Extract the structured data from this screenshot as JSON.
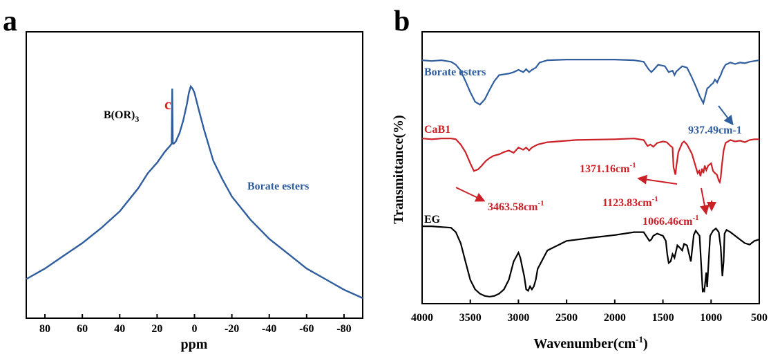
{
  "chart_data": [
    {
      "panel": "a",
      "type": "line",
      "xlabel": "ppm",
      "ylabel": "",
      "xlim": [
        90,
        -90
      ],
      "xticks": [
        "80",
        "60",
        "40",
        "20",
        "0",
        "-20",
        "-40",
        "-60",
        "-80"
      ],
      "series": [
        {
          "name": "Borate esters",
          "color": "#2f5d9e",
          "x": [
            90,
            80,
            70,
            60,
            50,
            40,
            30,
            25,
            20,
            16,
            14,
            13,
            12.2,
            11.9,
            11.6,
            11,
            10,
            8,
            6,
            4,
            3,
            2,
            1,
            0,
            -2,
            -5,
            -10,
            -15,
            -20,
            -30,
            -40,
            -50,
            -60,
            -70,
            -80,
            -90
          ],
          "y": [
            0.09,
            0.14,
            0.2,
            0.26,
            0.33,
            0.41,
            0.52,
            0.59,
            0.64,
            0.69,
            0.71,
            0.72,
            0.73,
            0.99,
            0.73,
            0.73,
            0.74,
            0.78,
            0.84,
            0.92,
            0.97,
            1.0,
            0.99,
            0.97,
            0.9,
            0.8,
            0.65,
            0.56,
            0.48,
            0.37,
            0.28,
            0.21,
            0.14,
            0.09,
            0.04,
            0.0
          ]
        }
      ],
      "annotations": [
        {
          "text": "B(OR)",
          "sub": "3",
          "color": "#000000"
        },
        {
          "text": "c",
          "color": "#e02020"
        },
        {
          "text": "Borate esters",
          "color": "#2f5d9e"
        }
      ]
    },
    {
      "panel": "b",
      "type": "line",
      "xlabel": "Wavenumber(cm",
      "xlabel_sup": "-1",
      "xlabel_end": ")",
      "ylabel": "Transmittance(%)",
      "xlim": [
        4000,
        500
      ],
      "xticks": [
        "4000",
        "3500",
        "3000",
        "2500",
        "2000",
        "1500",
        "1000",
        "500"
      ],
      "series": [
        {
          "name": "Borate esters",
          "color": "#2f5d9e",
          "x": [
            4000,
            3900,
            3800,
            3700,
            3650,
            3600,
            3550,
            3500,
            3450,
            3400,
            3350,
            3300,
            3250,
            3200,
            3100,
            3050,
            3000,
            2950,
            2920,
            2890,
            2860,
            2820,
            2780,
            2700,
            2500,
            2200,
            2000,
            1800,
            1700,
            1650,
            1620,
            1590,
            1550,
            1480,
            1440,
            1400,
            1380,
            1360,
            1300,
            1250,
            1200,
            1150,
            1120,
            1100,
            1080,
            1060,
            1040,
            1020,
            1000,
            980,
            960,
            937,
            920,
            900,
            880,
            850,
            800,
            750,
            700,
            650,
            600,
            550,
            500
          ],
          "y": [
            0.98,
            0.97,
            0.98,
            0.96,
            0.92,
            0.84,
            0.7,
            0.55,
            0.42,
            0.38,
            0.45,
            0.58,
            0.7,
            0.78,
            0.8,
            0.82,
            0.85,
            0.82,
            0.86,
            0.82,
            0.85,
            0.88,
            0.95,
            0.98,
            0.99,
            0.99,
            0.99,
            0.98,
            0.96,
            0.86,
            0.82,
            0.86,
            0.92,
            0.9,
            0.82,
            0.84,
            0.78,
            0.83,
            0.9,
            0.88,
            0.75,
            0.6,
            0.5,
            0.45,
            0.4,
            0.5,
            0.6,
            0.62,
            0.65,
            0.67,
            0.72,
            0.68,
            0.73,
            0.78,
            0.85,
            0.92,
            0.95,
            0.93,
            0.95,
            0.94,
            0.96,
            0.97,
            0.98
          ]
        },
        {
          "name": "CaB1",
          "color": "#cc2027",
          "x": [
            4000,
            3900,
            3800,
            3700,
            3650,
            3600,
            3550,
            3500,
            3463,
            3420,
            3380,
            3340,
            3300,
            3260,
            3200,
            3150,
            3100,
            3050,
            3000,
            2950,
            2920,
            2890,
            2860,
            2800,
            2700,
            2400,
            2000,
            1800,
            1700,
            1660,
            1630,
            1600,
            1560,
            1500,
            1460,
            1420,
            1400,
            1390,
            1371,
            1360,
            1340,
            1300,
            1280,
            1250,
            1200,
            1170,
            1140,
            1124,
            1110,
            1095,
            1080,
            1066,
            1050,
            1030,
            1000,
            980,
            960,
            940,
            920,
            910,
            900,
            890,
            870,
            850,
            800,
            750,
            700,
            650,
            600,
            550,
            500
          ],
          "y": [
            0.98,
            0.97,
            0.98,
            0.98,
            0.97,
            0.9,
            0.8,
            0.65,
            0.55,
            0.57,
            0.62,
            0.68,
            0.72,
            0.75,
            0.77,
            0.8,
            0.82,
            0.79,
            0.86,
            0.83,
            0.86,
            0.82,
            0.86,
            0.9,
            0.93,
            0.96,
            0.97,
            0.98,
            0.96,
            0.88,
            0.9,
            0.87,
            0.92,
            0.94,
            0.93,
            0.88,
            0.86,
            0.6,
            0.5,
            0.62,
            0.8,
            0.92,
            0.94,
            0.9,
            0.78,
            0.65,
            0.52,
            0.55,
            0.48,
            0.58,
            0.52,
            0.62,
            0.56,
            0.62,
            0.65,
            0.55,
            0.52,
            0.5,
            0.42,
            0.4,
            0.46,
            0.6,
            0.82,
            0.92,
            0.96,
            0.94,
            0.95,
            0.93,
            0.96,
            0.97,
            0.97
          ]
        },
        {
          "name": "EG",
          "color": "#000000",
          "x": [
            4000,
            3900,
            3800,
            3700,
            3650,
            3600,
            3550,
            3500,
            3450,
            3400,
            3350,
            3300,
            3250,
            3200,
            3150,
            3100,
            3050,
            3000,
            2980,
            2960,
            2940,
            2920,
            2900,
            2880,
            2860,
            2840,
            2820,
            2800,
            2700,
            2500,
            2200,
            2000,
            1800,
            1700,
            1660,
            1640,
            1620,
            1600,
            1560,
            1500,
            1470,
            1455,
            1440,
            1420,
            1400,
            1380,
            1350,
            1320,
            1300,
            1280,
            1250,
            1210,
            1200,
            1180,
            1160,
            1120,
            1100,
            1087,
            1080,
            1070,
            1050,
            1041,
            1030,
            1010,
            980,
            950,
            920,
            900,
            883,
            870,
            860,
            840,
            800,
            750,
            700,
            650,
            600,
            550,
            500
          ],
          "y": [
            0.98,
            0.98,
            0.97,
            0.96,
            0.9,
            0.75,
            0.5,
            0.25,
            0.12,
            0.06,
            0.03,
            0.02,
            0.03,
            0.06,
            0.12,
            0.25,
            0.5,
            0.62,
            0.55,
            0.42,
            0.3,
            0.12,
            0.1,
            0.16,
            0.12,
            0.16,
            0.25,
            0.4,
            0.65,
            0.78,
            0.83,
            0.86,
            0.9,
            0.9,
            0.82,
            0.78,
            0.8,
            0.85,
            0.88,
            0.85,
            0.78,
            0.6,
            0.48,
            0.5,
            0.6,
            0.55,
            0.72,
            0.68,
            0.65,
            0.74,
            0.72,
            0.5,
            0.62,
            0.86,
            0.92,
            0.85,
            0.4,
            0.08,
            0.12,
            0.1,
            0.35,
            0.15,
            0.4,
            0.85,
            0.92,
            0.95,
            0.9,
            0.7,
            0.3,
            0.5,
            0.88,
            0.93,
            0.9,
            0.85,
            0.8,
            0.75,
            0.73,
            0.78,
            0.8
          ]
        }
      ],
      "annotations": [
        {
          "text": "937.49cm-1",
          "color": "#2f5d9e"
        },
        {
          "text": "1371.16cm",
          "sup": "-1",
          "color": "#cc2027"
        },
        {
          "text": "3463.58cm",
          "sup": "-1",
          "color": "#cc2027"
        },
        {
          "text": "1123.83cm",
          "sup": "-1",
          "color": "#cc2027"
        },
        {
          "text": "1066.46cm",
          "sup": "-1",
          "color": "#cc2027"
        }
      ]
    }
  ]
}
